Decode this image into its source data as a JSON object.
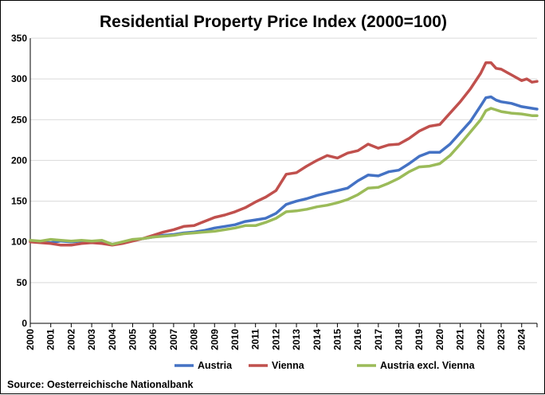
{
  "chart_data": {
    "type": "line",
    "title": "Residential Property Price Index (2000=100)",
    "xlabel": "",
    "ylabel": "",
    "source": "Source: Oesterreichische Nationalbank",
    "xlim": [
      2000,
      2024.75
    ],
    "ylim": [
      0,
      350
    ],
    "y_ticks": [
      0,
      50,
      100,
      150,
      200,
      250,
      300,
      350
    ],
    "x_ticks": [
      "2000",
      "2001",
      "2002",
      "2003",
      "2004",
      "2005",
      "2006",
      "2007",
      "2008",
      "2009",
      "2010",
      "2011",
      "2012",
      "2013",
      "2014",
      "2015",
      "2016",
      "2017",
      "2018",
      "2019",
      "2020",
      "2021",
      "2022",
      "2023",
      "2024"
    ],
    "grid": "horizontal",
    "legend_position": "bottom",
    "series": [
      {
        "name": "Austria",
        "color": "#4472C4",
        "x": [
          2000,
          2000.5,
          2001,
          2001.5,
          2002,
          2002.5,
          2003,
          2003.5,
          2004,
          2004.5,
          2005,
          2005.5,
          2006,
          2006.5,
          2007,
          2007.5,
          2008,
          2008.5,
          2009,
          2009.5,
          2010,
          2010.5,
          2011,
          2011.5,
          2012,
          2012.5,
          2013,
          2013.5,
          2014,
          2014.5,
          2015,
          2015.5,
          2016,
          2016.5,
          2017,
          2017.5,
          2018,
          2018.5,
          2019,
          2019.5,
          2020,
          2020.5,
          2021,
          2021.5,
          2022,
          2022.25,
          2022.5,
          2022.75,
          2023,
          2023.5,
          2024,
          2024.5,
          2024.75
        ],
        "values": [
          101,
          100,
          99,
          101,
          100,
          101,
          100,
          100,
          97,
          99,
          102,
          104,
          106,
          108,
          109,
          111,
          112,
          114,
          117,
          119,
          121,
          125,
          127,
          129,
          135,
          146,
          150,
          153,
          157,
          160,
          163,
          166,
          175,
          182,
          181,
          186,
          188,
          196,
          205,
          210,
          210,
          220,
          234,
          248,
          267,
          277,
          278,
          274,
          272,
          270,
          266,
          264,
          263
        ]
      },
      {
        "name": "Vienna",
        "color": "#C0504D",
        "x": [
          2000,
          2000.5,
          2001,
          2001.5,
          2002,
          2002.5,
          2003,
          2003.5,
          2004,
          2004.5,
          2005,
          2005.5,
          2006,
          2006.5,
          2007,
          2007.5,
          2008,
          2008.5,
          2009,
          2009.5,
          2010,
          2010.5,
          2011,
          2011.5,
          2012,
          2012.5,
          2013,
          2013.5,
          2014,
          2014.5,
          2015,
          2015.5,
          2016,
          2016.5,
          2017,
          2017.5,
          2018,
          2018.5,
          2019,
          2019.5,
          2020,
          2020.5,
          2021,
          2021.5,
          2022,
          2022.25,
          2022.5,
          2022.75,
          2023,
          2023.5,
          2024,
          2024.25,
          2024.5,
          2024.75
        ],
        "values": [
          100,
          99,
          98,
          96,
          96,
          98,
          99,
          98,
          96,
          98,
          101,
          104,
          108,
          112,
          115,
          119,
          120,
          125,
          130,
          133,
          137,
          142,
          149,
          155,
          163,
          183,
          185,
          193,
          200,
          206,
          203,
          209,
          212,
          220,
          215,
          219,
          220,
          227,
          236,
          242,
          244,
          258,
          272,
          288,
          307,
          320,
          320,
          313,
          312,
          305,
          298,
          300,
          296,
          297
        ]
      },
      {
        "name": "Austria excl. Vienna",
        "color": "#9BBB59",
        "x": [
          2000,
          2000.5,
          2001,
          2001.5,
          2002,
          2002.5,
          2003,
          2003.5,
          2004,
          2004.5,
          2005,
          2005.5,
          2006,
          2006.5,
          2007,
          2007.5,
          2008,
          2008.5,
          2009,
          2009.5,
          2010,
          2010.5,
          2011,
          2011.5,
          2012,
          2012.5,
          2013,
          2013.5,
          2014,
          2014.5,
          2015,
          2015.5,
          2016,
          2016.5,
          2017,
          2017.5,
          2018,
          2018.5,
          2019,
          2019.5,
          2020,
          2020.5,
          2021,
          2021.5,
          2022,
          2022.25,
          2022.5,
          2022.75,
          2023,
          2023.5,
          2024,
          2024.5,
          2024.75
        ],
        "values": [
          102,
          101,
          103,
          102,
          101,
          102,
          101,
          102,
          97,
          100,
          103,
          104,
          106,
          107,
          108,
          110,
          111,
          112,
          113,
          115,
          117,
          120,
          120,
          124,
          129,
          137,
          138,
          140,
          143,
          145,
          148,
          152,
          158,
          166,
          167,
          172,
          178,
          186,
          192,
          193,
          196,
          206,
          220,
          235,
          250,
          261,
          264,
          262,
          260,
          258,
          257,
          255,
          255
        ]
      }
    ]
  }
}
